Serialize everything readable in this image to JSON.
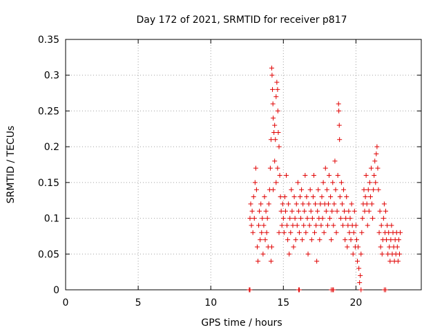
{
  "chart_data": {
    "type": "scatter",
    "title": "Day 172 of 2021, SRMTID for receiver p817",
    "xlabel": "GPS time / hours",
    "ylabel": "SRMTID / TECUs",
    "xlim": [
      0,
      24.5
    ],
    "ylim": [
      0,
      0.35
    ],
    "xticks": [
      0,
      5,
      10,
      15,
      20
    ],
    "xtick_labels": [
      "0",
      "5",
      "10",
      "15",
      "20"
    ],
    "yticks": [
      0,
      0.05,
      0.1,
      0.15,
      0.2,
      0.25,
      0.3,
      0.35
    ],
    "ytick_labels": [
      "0",
      "0.05",
      "0.1",
      "0.15",
      "0.2",
      "0.25",
      "0.3",
      "0.35"
    ],
    "grid": true,
    "marker": "+",
    "series": [
      {
        "name": "SRMTID",
        "color": "#e00000",
        "points": [
          [
            12.65,
            0.0
          ],
          [
            12.7,
            0.0
          ],
          [
            16.05,
            0.0
          ],
          [
            16.1,
            0.0
          ],
          [
            18.3,
            0.0
          ],
          [
            18.4,
            0.0
          ],
          [
            18.45,
            0.0
          ],
          [
            20.35,
            0.0
          ],
          [
            21.95,
            0.0
          ],
          [
            22.05,
            0.0
          ],
          [
            12.7,
            0.1
          ],
          [
            12.75,
            0.12
          ],
          [
            12.8,
            0.09
          ],
          [
            12.85,
            0.11
          ],
          [
            12.9,
            0.08
          ],
          [
            12.95,
            0.13
          ],
          [
            13.0,
            0.1
          ],
          [
            13.05,
            0.15
          ],
          [
            13.1,
            0.17
          ],
          [
            13.15,
            0.14
          ],
          [
            13.2,
            0.06
          ],
          [
            13.25,
            0.04
          ],
          [
            13.3,
            0.09
          ],
          [
            13.35,
            0.11
          ],
          [
            13.4,
            0.07
          ],
          [
            13.45,
            0.12
          ],
          [
            13.5,
            0.08
          ],
          [
            13.55,
            0.1
          ],
          [
            13.6,
            0.05
          ],
          [
            13.65,
            0.09
          ],
          [
            13.7,
            0.13
          ],
          [
            13.75,
            0.07
          ],
          [
            13.8,
            0.11
          ],
          [
            13.85,
            0.08
          ],
          [
            13.9,
            0.1
          ],
          [
            13.95,
            0.06
          ],
          [
            14.0,
            0.12
          ],
          [
            14.05,
            0.14
          ],
          [
            14.1,
            0.17
          ],
          [
            14.15,
            0.21
          ],
          [
            14.2,
            0.31
          ],
          [
            14.22,
            0.3
          ],
          [
            14.25,
            0.28
          ],
          [
            14.28,
            0.26
          ],
          [
            14.3,
            0.24
          ],
          [
            14.35,
            0.22
          ],
          [
            14.4,
            0.23
          ],
          [
            14.45,
            0.21
          ],
          [
            14.5,
            0.27
          ],
          [
            14.55,
            0.29
          ],
          [
            14.6,
            0.28
          ],
          [
            14.62,
            0.25
          ],
          [
            14.65,
            0.22
          ],
          [
            14.7,
            0.2
          ],
          [
            14.75,
            0.16
          ],
          [
            14.8,
            0.13
          ],
          [
            14.85,
            0.11
          ],
          [
            14.9,
            0.09
          ],
          [
            14.95,
            0.12
          ],
          [
            15.0,
            0.1
          ],
          [
            14.15,
            0.04
          ],
          [
            14.2,
            0.06
          ],
          [
            14.3,
            0.14
          ],
          [
            14.4,
            0.18
          ],
          [
            14.5,
            0.15
          ],
          [
            14.6,
            0.17
          ],
          [
            14.7,
            0.08
          ],
          [
            15.05,
            0.08
          ],
          [
            15.1,
            0.13
          ],
          [
            15.15,
            0.11
          ],
          [
            15.2,
            0.16
          ],
          [
            15.25,
            0.09
          ],
          [
            15.3,
            0.07
          ],
          [
            15.35,
            0.12
          ],
          [
            15.4,
            0.05
          ],
          [
            15.45,
            0.1
          ],
          [
            15.5,
            0.08
          ],
          [
            15.55,
            0.14
          ],
          [
            15.6,
            0.11
          ],
          [
            15.65,
            0.09
          ],
          [
            15.7,
            0.06
          ],
          [
            15.75,
            0.13
          ],
          [
            15.8,
            0.1
          ],
          [
            15.85,
            0.07
          ],
          [
            15.9,
            0.12
          ],
          [
            15.95,
            0.09
          ],
          [
            16.0,
            0.15
          ],
          [
            16.05,
            0.11
          ],
          [
            16.1,
            0.08
          ],
          [
            16.15,
            0.13
          ],
          [
            16.2,
            0.1
          ],
          [
            16.25,
            0.14
          ],
          [
            16.3,
            0.07
          ],
          [
            16.35,
            0.12
          ],
          [
            16.4,
            0.09
          ],
          [
            16.45,
            0.11
          ],
          [
            16.5,
            0.16
          ],
          [
            16.55,
            0.08
          ],
          [
            16.6,
            0.13
          ],
          [
            16.65,
            0.1
          ],
          [
            16.7,
            0.05
          ],
          [
            16.75,
            0.12
          ],
          [
            16.8,
            0.09
          ],
          [
            16.85,
            0.14
          ],
          [
            16.9,
            0.11
          ],
          [
            16.95,
            0.07
          ],
          [
            17.0,
            0.1
          ],
          [
            17.05,
            0.13
          ],
          [
            17.1,
            0.16
          ],
          [
            17.15,
            0.08
          ],
          [
            17.2,
            0.12
          ],
          [
            17.25,
            0.09
          ],
          [
            17.3,
            0.04
          ],
          [
            17.35,
            0.11
          ],
          [
            17.4,
            0.14
          ],
          [
            17.45,
            0.1
          ],
          [
            17.5,
            0.07
          ],
          [
            17.55,
            0.12
          ],
          [
            17.6,
            0.09
          ],
          [
            17.65,
            0.13
          ],
          [
            17.7,
            0.1
          ],
          [
            17.75,
            0.15
          ],
          [
            17.8,
            0.08
          ],
          [
            17.85,
            0.12
          ],
          [
            17.9,
            0.17
          ],
          [
            17.95,
            0.11
          ],
          [
            18.0,
            0.14
          ],
          [
            18.05,
            0.09
          ],
          [
            18.1,
            0.12
          ],
          [
            18.15,
            0.16
          ],
          [
            18.2,
            0.1
          ],
          [
            18.25,
            0.13
          ],
          [
            18.3,
            0.07
          ],
          [
            18.35,
            0.11
          ],
          [
            18.4,
            0.15
          ],
          [
            18.45,
            0.09
          ],
          [
            18.5,
            0.12
          ],
          [
            18.55,
            0.18
          ],
          [
            18.6,
            0.14
          ],
          [
            18.65,
            0.08
          ],
          [
            18.7,
            0.11
          ],
          [
            18.75,
            0.16
          ],
          [
            18.8,
            0.26
          ],
          [
            18.82,
            0.25
          ],
          [
            18.85,
            0.23
          ],
          [
            18.87,
            0.21
          ],
          [
            18.9,
            0.13
          ],
          [
            18.95,
            0.1
          ],
          [
            19.0,
            0.15
          ],
          [
            19.05,
            0.12
          ],
          [
            19.1,
            0.09
          ],
          [
            19.15,
            0.14
          ],
          [
            19.2,
            0.11
          ],
          [
            19.25,
            0.07
          ],
          [
            19.3,
            0.1
          ],
          [
            19.35,
            0.13
          ],
          [
            19.4,
            0.06
          ],
          [
            19.45,
            0.09
          ],
          [
            19.5,
            0.11
          ],
          [
            19.55,
            0.08
          ],
          [
            19.6,
            0.1
          ],
          [
            19.65,
            0.07
          ],
          [
            19.7,
            0.12
          ],
          [
            19.75,
            0.09
          ],
          [
            19.8,
            0.05
          ],
          [
            19.85,
            0.08
          ],
          [
            19.9,
            0.11
          ],
          [
            19.95,
            0.06
          ],
          [
            20.0,
            0.09
          ],
          [
            20.05,
            0.07
          ],
          [
            20.1,
            0.04
          ],
          [
            20.15,
            0.06
          ],
          [
            20.2,
            0.03
          ],
          [
            20.25,
            0.01
          ],
          [
            20.3,
            0.02
          ],
          [
            20.35,
            0.05
          ],
          [
            20.4,
            0.08
          ],
          [
            20.45,
            0.1
          ],
          [
            20.5,
            0.12
          ],
          [
            20.55,
            0.14
          ],
          [
            20.6,
            0.11
          ],
          [
            20.65,
            0.13
          ],
          [
            20.7,
            0.16
          ],
          [
            20.75,
            0.12
          ],
          [
            20.8,
            0.09
          ],
          [
            20.85,
            0.14
          ],
          [
            20.9,
            0.11
          ],
          [
            20.95,
            0.15
          ],
          [
            21.0,
            0.13
          ],
          [
            21.05,
            0.17
          ],
          [
            21.1,
            0.12
          ],
          [
            21.15,
            0.1
          ],
          [
            21.2,
            0.14
          ],
          [
            21.25,
            0.16
          ],
          [
            21.3,
            0.18
          ],
          [
            21.35,
            0.15
          ],
          [
            21.4,
            0.19
          ],
          [
            21.45,
            0.2
          ],
          [
            21.5,
            0.17
          ],
          [
            21.55,
            0.14
          ],
          [
            21.6,
            0.08
          ],
          [
            21.65,
            0.11
          ],
          [
            21.7,
            0.06
          ],
          [
            21.75,
            0.09
          ],
          [
            21.8,
            0.05
          ],
          [
            21.85,
            0.07
          ],
          [
            21.9,
            0.1
          ],
          [
            21.95,
            0.12
          ],
          [
            22.0,
            0.08
          ],
          [
            22.05,
            0.11
          ],
          [
            22.1,
            0.07
          ],
          [
            22.15,
            0.09
          ],
          [
            22.2,
            0.05
          ],
          [
            22.25,
            0.08
          ],
          [
            22.3,
            0.06
          ],
          [
            22.35,
            0.04
          ],
          [
            22.4,
            0.07
          ],
          [
            22.45,
            0.09
          ],
          [
            22.5,
            0.05
          ],
          [
            22.55,
            0.08
          ],
          [
            22.6,
            0.06
          ],
          [
            22.65,
            0.04
          ],
          [
            22.7,
            0.07
          ],
          [
            22.75,
            0.05
          ],
          [
            22.8,
            0.08
          ],
          [
            22.85,
            0.06
          ],
          [
            22.9,
            0.04
          ],
          [
            22.95,
            0.07
          ],
          [
            23.0,
            0.05
          ],
          [
            23.05,
            0.08
          ]
        ]
      }
    ]
  }
}
